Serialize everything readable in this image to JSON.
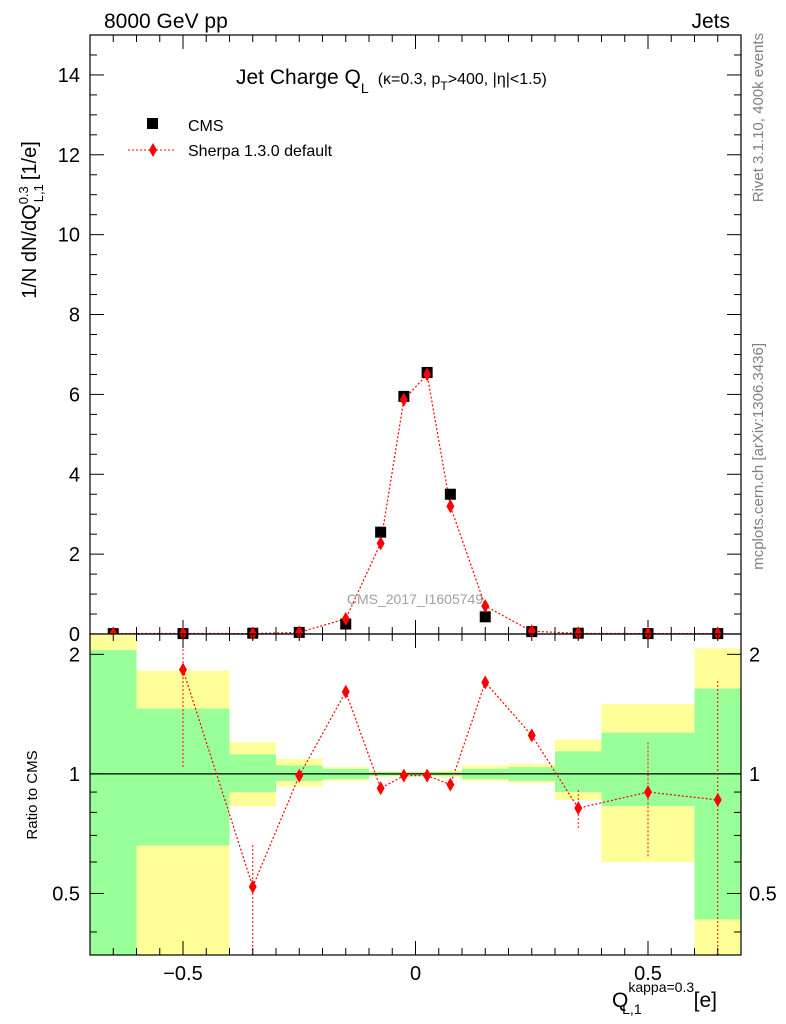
{
  "header": {
    "left": "8000 GeV pp",
    "right": "Jets"
  },
  "sidebar": {
    "rivet": "Rivet 3.1.10,  400k events",
    "source": "mcplots.cern.ch [arXiv:1306.3436]"
  },
  "watermark": "CMS_2017_I1605749",
  "chart_data": [
    {
      "type": "scatter",
      "panel": "main",
      "title_main": "Jet Charge Q",
      "title_sub": "L",
      "title_detail": "(κ=0.3, p",
      "title_detail_sub": "T",
      "title_detail_tail": ">400, |η|<1.5)",
      "ylabel_main": "1/N dN/dQ",
      "ylabel_sup": "0.3",
      "ylabel_sub": "L,1",
      "ylabel_tail": "[1/e]",
      "xlim": [
        -0.7,
        0.7
      ],
      "ylim": [
        0,
        15
      ],
      "y_ticks": [
        "0",
        "2",
        "4",
        "6",
        "8",
        "10",
        "12",
        "14"
      ],
      "y_tick_values": [
        0,
        2,
        4,
        6,
        8,
        10,
        12,
        14
      ],
      "legend_position": "top-left",
      "series": [
        {
          "name": "CMS",
          "marker": "square",
          "color": "#000000",
          "x": [
            -0.65,
            -0.5,
            -0.35,
            -0.25,
            -0.15,
            -0.075,
            -0.025,
            0.025,
            0.075,
            0.15,
            0.25,
            0.35,
            0.5,
            0.65
          ],
          "y": [
            0.01,
            0.01,
            0.02,
            0.04,
            0.25,
            2.55,
            5.95,
            6.55,
            3.5,
            0.43,
            0.06,
            0.02,
            0.01,
            0.01
          ]
        },
        {
          "name": "Sherpa 1.3.0 default",
          "marker": "diamond",
          "color": "#ff0000",
          "line": "dotted",
          "x": [
            -0.65,
            -0.5,
            -0.35,
            -0.25,
            -0.15,
            -0.075,
            -0.025,
            0.025,
            0.075,
            0.15,
            0.25,
            0.35,
            0.5,
            0.65
          ],
          "y": [
            0.01,
            0.015,
            0.01,
            0.04,
            0.38,
            2.27,
            5.87,
            6.5,
            3.2,
            0.7,
            0.07,
            0.015,
            0.01,
            0.01
          ]
        }
      ]
    },
    {
      "type": "area",
      "panel": "ratio",
      "ylabel": "Ratio to CMS",
      "xlabel_main": "Q",
      "xlabel_sup": "kappa=0.3",
      "xlabel_sub": "L,1",
      "xlabel_tail": "[e]",
      "xlim": [
        -0.7,
        0.7
      ],
      "ylim": [
        0.35,
        2.25
      ],
      "x_ticks": [
        "−0.5",
        "0",
        "0.5"
      ],
      "x_tick_values": [
        -0.5,
        0,
        0.5
      ],
      "y_ticks": [
        "0.5",
        "1",
        "2"
      ],
      "y_tick_values": [
        0.5,
        1,
        2
      ],
      "bands": [
        {
          "x0": -0.7,
          "x1": -0.6,
          "stat_lo": 0.0,
          "stat_hi": 2.05,
          "tot_lo": 0.0,
          "tot_hi": 2.5
        },
        {
          "x0": -0.6,
          "x1": -0.4,
          "stat_lo": 0.66,
          "stat_hi": 1.46,
          "tot_lo": 0.0,
          "tot_hi": 1.82
        },
        {
          "x0": -0.4,
          "x1": -0.3,
          "stat_lo": 0.9,
          "stat_hi": 1.12,
          "tot_lo": 0.83,
          "tot_hi": 1.2
        },
        {
          "x0": -0.3,
          "x1": -0.2,
          "stat_lo": 0.96,
          "stat_hi": 1.05,
          "tot_lo": 0.93,
          "tot_hi": 1.09
        },
        {
          "x0": -0.2,
          "x1": -0.1,
          "stat_lo": 0.97,
          "stat_hi": 1.03,
          "tot_lo": 0.96,
          "tot_hi": 1.04
        },
        {
          "x0": -0.1,
          "x1": -0.05,
          "stat_lo": 0.99,
          "stat_hi": 1.01,
          "tot_lo": 0.985,
          "tot_hi": 1.015
        },
        {
          "x0": -0.05,
          "x1": 0.0,
          "stat_lo": 0.99,
          "stat_hi": 1.01,
          "tot_lo": 0.985,
          "tot_hi": 1.015
        },
        {
          "x0": 0.0,
          "x1": 0.05,
          "stat_lo": 0.99,
          "stat_hi": 1.01,
          "tot_lo": 0.985,
          "tot_hi": 1.015
        },
        {
          "x0": 0.05,
          "x1": 0.1,
          "stat_lo": 0.99,
          "stat_hi": 1.01,
          "tot_lo": 0.98,
          "tot_hi": 1.02
        },
        {
          "x0": 0.1,
          "x1": 0.2,
          "stat_lo": 0.97,
          "stat_hi": 1.03,
          "tot_lo": 0.96,
          "tot_hi": 1.05
        },
        {
          "x0": 0.2,
          "x1": 0.3,
          "stat_lo": 0.96,
          "stat_hi": 1.04,
          "tot_lo": 0.95,
          "tot_hi": 1.06
        },
        {
          "x0": 0.3,
          "x1": 0.4,
          "stat_lo": 0.9,
          "stat_hi": 1.14,
          "tot_lo": 0.86,
          "tot_hi": 1.22
        },
        {
          "x0": 0.4,
          "x1": 0.6,
          "stat_lo": 0.83,
          "stat_hi": 1.27,
          "tot_lo": 0.6,
          "tot_hi": 1.5
        },
        {
          "x0": 0.6,
          "x1": 0.7,
          "stat_lo": 0.43,
          "stat_hi": 1.64,
          "tot_lo": 0.0,
          "tot_hi": 2.07
        }
      ],
      "ratio_series": {
        "name": "Sherpa 1.3.0 default",
        "color": "#ff0000",
        "x": [
          -0.5,
          -0.35,
          -0.25,
          -0.15,
          -0.075,
          -0.025,
          0.025,
          0.075,
          0.15,
          0.25,
          0.35,
          0.5,
          0.65
        ],
        "y": [
          1.83,
          0.52,
          0.99,
          1.61,
          0.92,
          0.99,
          0.99,
          0.94,
          1.7,
          1.25,
          0.82,
          0.9,
          0.86
        ],
        "err_lo": [
          1.04,
          0.3,
          0.98,
          1.59,
          0.91,
          0.985,
          0.985,
          0.93,
          1.68,
          1.22,
          0.73,
          0.62,
          0.3
        ],
        "err_hi": [
          2.6,
          0.67,
          1.0,
          1.63,
          0.93,
          0.995,
          0.995,
          0.95,
          1.72,
          1.28,
          0.91,
          1.2,
          1.72
        ]
      }
    }
  ]
}
